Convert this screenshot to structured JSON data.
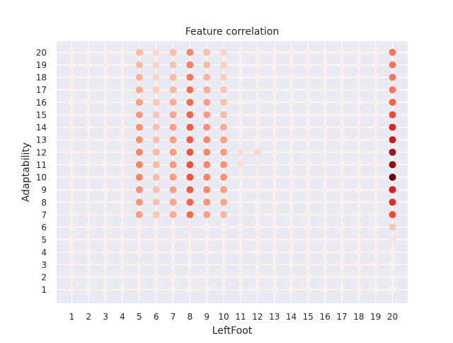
{
  "chart_data": {
    "type": "scatter",
    "title": "Feature correlation",
    "xlabel": "LeftFoot",
    "ylabel": "Adaptability",
    "x_ticks": [
      1,
      2,
      3,
      4,
      5,
      6,
      7,
      8,
      9,
      10,
      11,
      12,
      13,
      14,
      15,
      16,
      17,
      18,
      19,
      20
    ],
    "y_ticks": [
      1,
      2,
      3,
      4,
      5,
      6,
      7,
      8,
      9,
      10,
      11,
      12,
      13,
      14,
      15,
      16,
      17,
      18,
      19,
      20
    ],
    "xlim": [
      0.1,
      20.9
    ],
    "ylim": [
      -0.1,
      20.9
    ],
    "grid": true,
    "colormap": "Reds",
    "background": "#eaeaf2",
    "grid_color": "#ffffff",
    "points_note": "Every integer (x, y) pair from 1 to 20 is plotted; intensity value per point given below (0 = lightest).",
    "intensity_by_x": {
      "5": {
        "7": 0.4,
        "8": 0.45,
        "9": 0.45,
        "10": 0.5,
        "11": 0.5,
        "12": 0.5,
        "13": 0.45,
        "14": 0.45,
        "15": 0.42,
        "16": 0.4,
        "17": 0.35,
        "18": 0.33,
        "19": 0.3,
        "20": 0.3
      },
      "6": {
        "7": 0.25,
        "8": 0.28,
        "9": 0.28,
        "10": 0.3,
        "11": 0.3,
        "12": 0.3,
        "13": 0.28,
        "14": 0.28,
        "15": 0.25,
        "16": 0.25,
        "17": 0.22,
        "18": 0.2,
        "19": 0.2,
        "20": 0.18
      },
      "7": {
        "7": 0.35,
        "8": 0.38,
        "9": 0.4,
        "10": 0.42,
        "11": 0.42,
        "12": 0.42,
        "13": 0.4,
        "14": 0.4,
        "15": 0.38,
        "16": 0.35,
        "17": 0.32,
        "18": 0.3,
        "19": 0.28,
        "20": 0.28
      },
      "8": {
        "6": 0.1,
        "7": 0.6,
        "8": 0.62,
        "9": 0.65,
        "10": 0.68,
        "11": 0.68,
        "12": 0.68,
        "13": 0.65,
        "14": 0.65,
        "15": 0.62,
        "16": 0.6,
        "17": 0.58,
        "18": 0.55,
        "19": 0.52,
        "20": 0.5
      },
      "9": {
        "7": 0.4,
        "8": 0.45,
        "9": 0.48,
        "10": 0.5,
        "11": 0.5,
        "12": 0.5,
        "13": 0.48,
        "14": 0.45,
        "15": 0.42,
        "16": 0.4,
        "17": 0.35,
        "18": 0.32,
        "19": 0.3,
        "20": 0.28
      },
      "10": {
        "7": 0.32,
        "8": 0.38,
        "9": 0.4,
        "10": 0.45,
        "11": 0.45,
        "12": 0.42,
        "13": 0.4,
        "14": 0.35,
        "15": 0.3,
        "16": 0.28,
        "17": 0.25,
        "18": 0.22,
        "19": 0.22,
        "20": 0.2
      },
      "11": {
        "11": 0.15,
        "12": 0.15
      },
      "12": {
        "11": 0.1,
        "12": 0.18
      },
      "20": {
        "1": 0.03,
        "2": 0.03,
        "3": 0.03,
        "4": 0.04,
        "5": 0.12,
        "6": 0.25,
        "7": 0.7,
        "8": 0.8,
        "9": 0.85,
        "10": 1.0,
        "11": 0.95,
        "12": 0.92,
        "13": 0.88,
        "14": 0.82,
        "15": 0.7,
        "16": 0.62,
        "17": 0.55,
        "18": 0.55,
        "19": 0.55,
        "20": 0.55
      }
    },
    "base_intensity": 0.04
  }
}
